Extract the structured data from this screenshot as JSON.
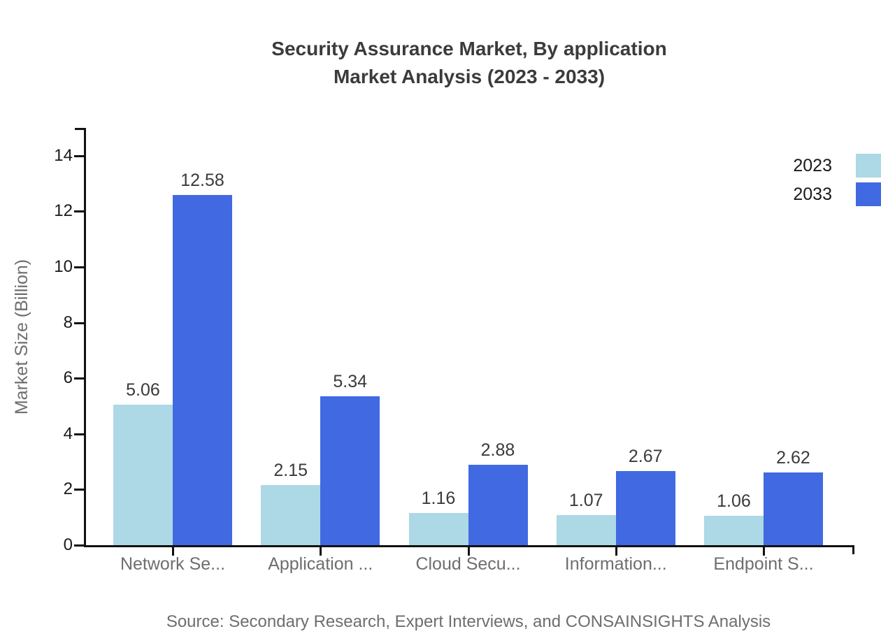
{
  "title": {
    "line1": "Security Assurance Market, By application",
    "line2": "Market Analysis (2023 - 2033)"
  },
  "source": "Source: Secondary Research, Expert Interviews, and CONSAINSIGHTS Analysis",
  "colors": {
    "series_2023": "#ADD8E6",
    "series_2033": "#4169E1",
    "axis": "#111111",
    "title_text": "#3b3b3b",
    "muted_text": "#6e6e6e",
    "value_text": "#3a3a3a",
    "background": "#ffffff"
  },
  "legend": {
    "position": "top-right",
    "items": [
      {
        "label": "2023",
        "color": "#ADD8E6"
      },
      {
        "label": "2033",
        "color": "#4169E1"
      }
    ]
  },
  "chart_data": {
    "type": "bar",
    "title": "Security Assurance Market, By application Market Analysis (2023 - 2033)",
    "categories": [
      "Network Se...",
      "Application ...",
      "Cloud Secu...",
      "Information...",
      "Endpoint S..."
    ],
    "series": [
      {
        "name": "2023",
        "color": "#ADD8E6",
        "values": [
          5.06,
          2.15,
          1.16,
          1.07,
          1.06
        ]
      },
      {
        "name": "2033",
        "color": "#4169E1",
        "values": [
          12.58,
          5.34,
          2.88,
          2.67,
          2.62
        ]
      }
    ],
    "xlabel": "",
    "ylabel": "Market Size (Billion)",
    "ylim": [
      0,
      15
    ],
    "yticks": [
      0,
      2,
      4,
      6,
      8,
      10,
      12,
      14
    ],
    "grid": false,
    "legend_position": "top-right",
    "value_labels": "two-decimals",
    "source": "Source: Secondary Research, Expert Interviews, and CONSAINSIGHTS Analysis"
  }
}
